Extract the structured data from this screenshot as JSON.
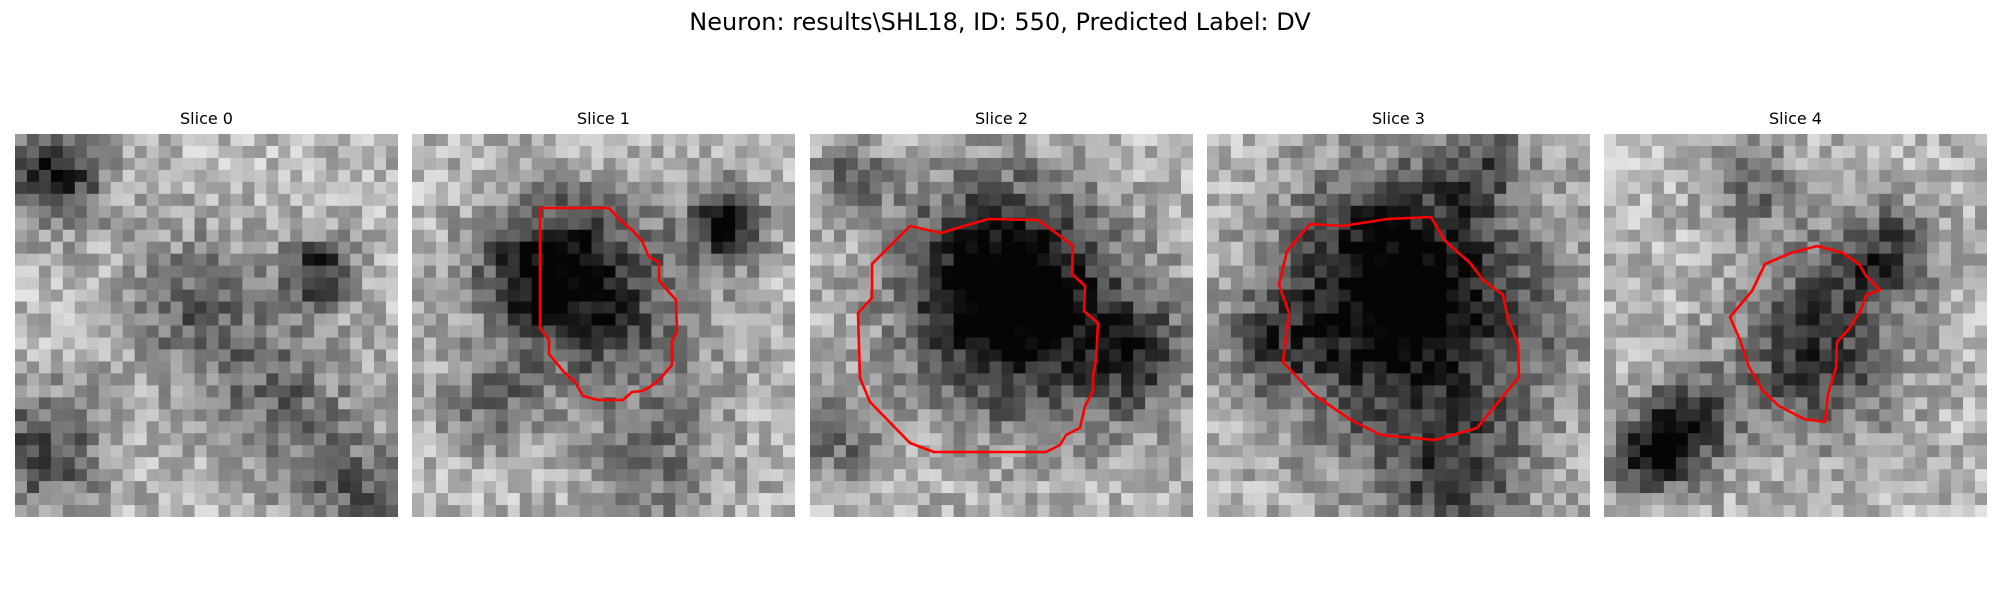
{
  "figure": {
    "title": "Neuron: results\\SHL18, ID: 550, Predicted Label: DV"
  },
  "colors": {
    "contour": "#ff0000",
    "colormap": "gray"
  },
  "slices": [
    {
      "title": "Slice 0",
      "has_contour": false
    },
    {
      "title": "Slice 1",
      "has_contour": true
    },
    {
      "title": "Slice 2",
      "has_contour": true
    },
    {
      "title": "Slice 3",
      "has_contour": true
    },
    {
      "title": "Slice 4",
      "has_contour": true
    }
  ]
}
